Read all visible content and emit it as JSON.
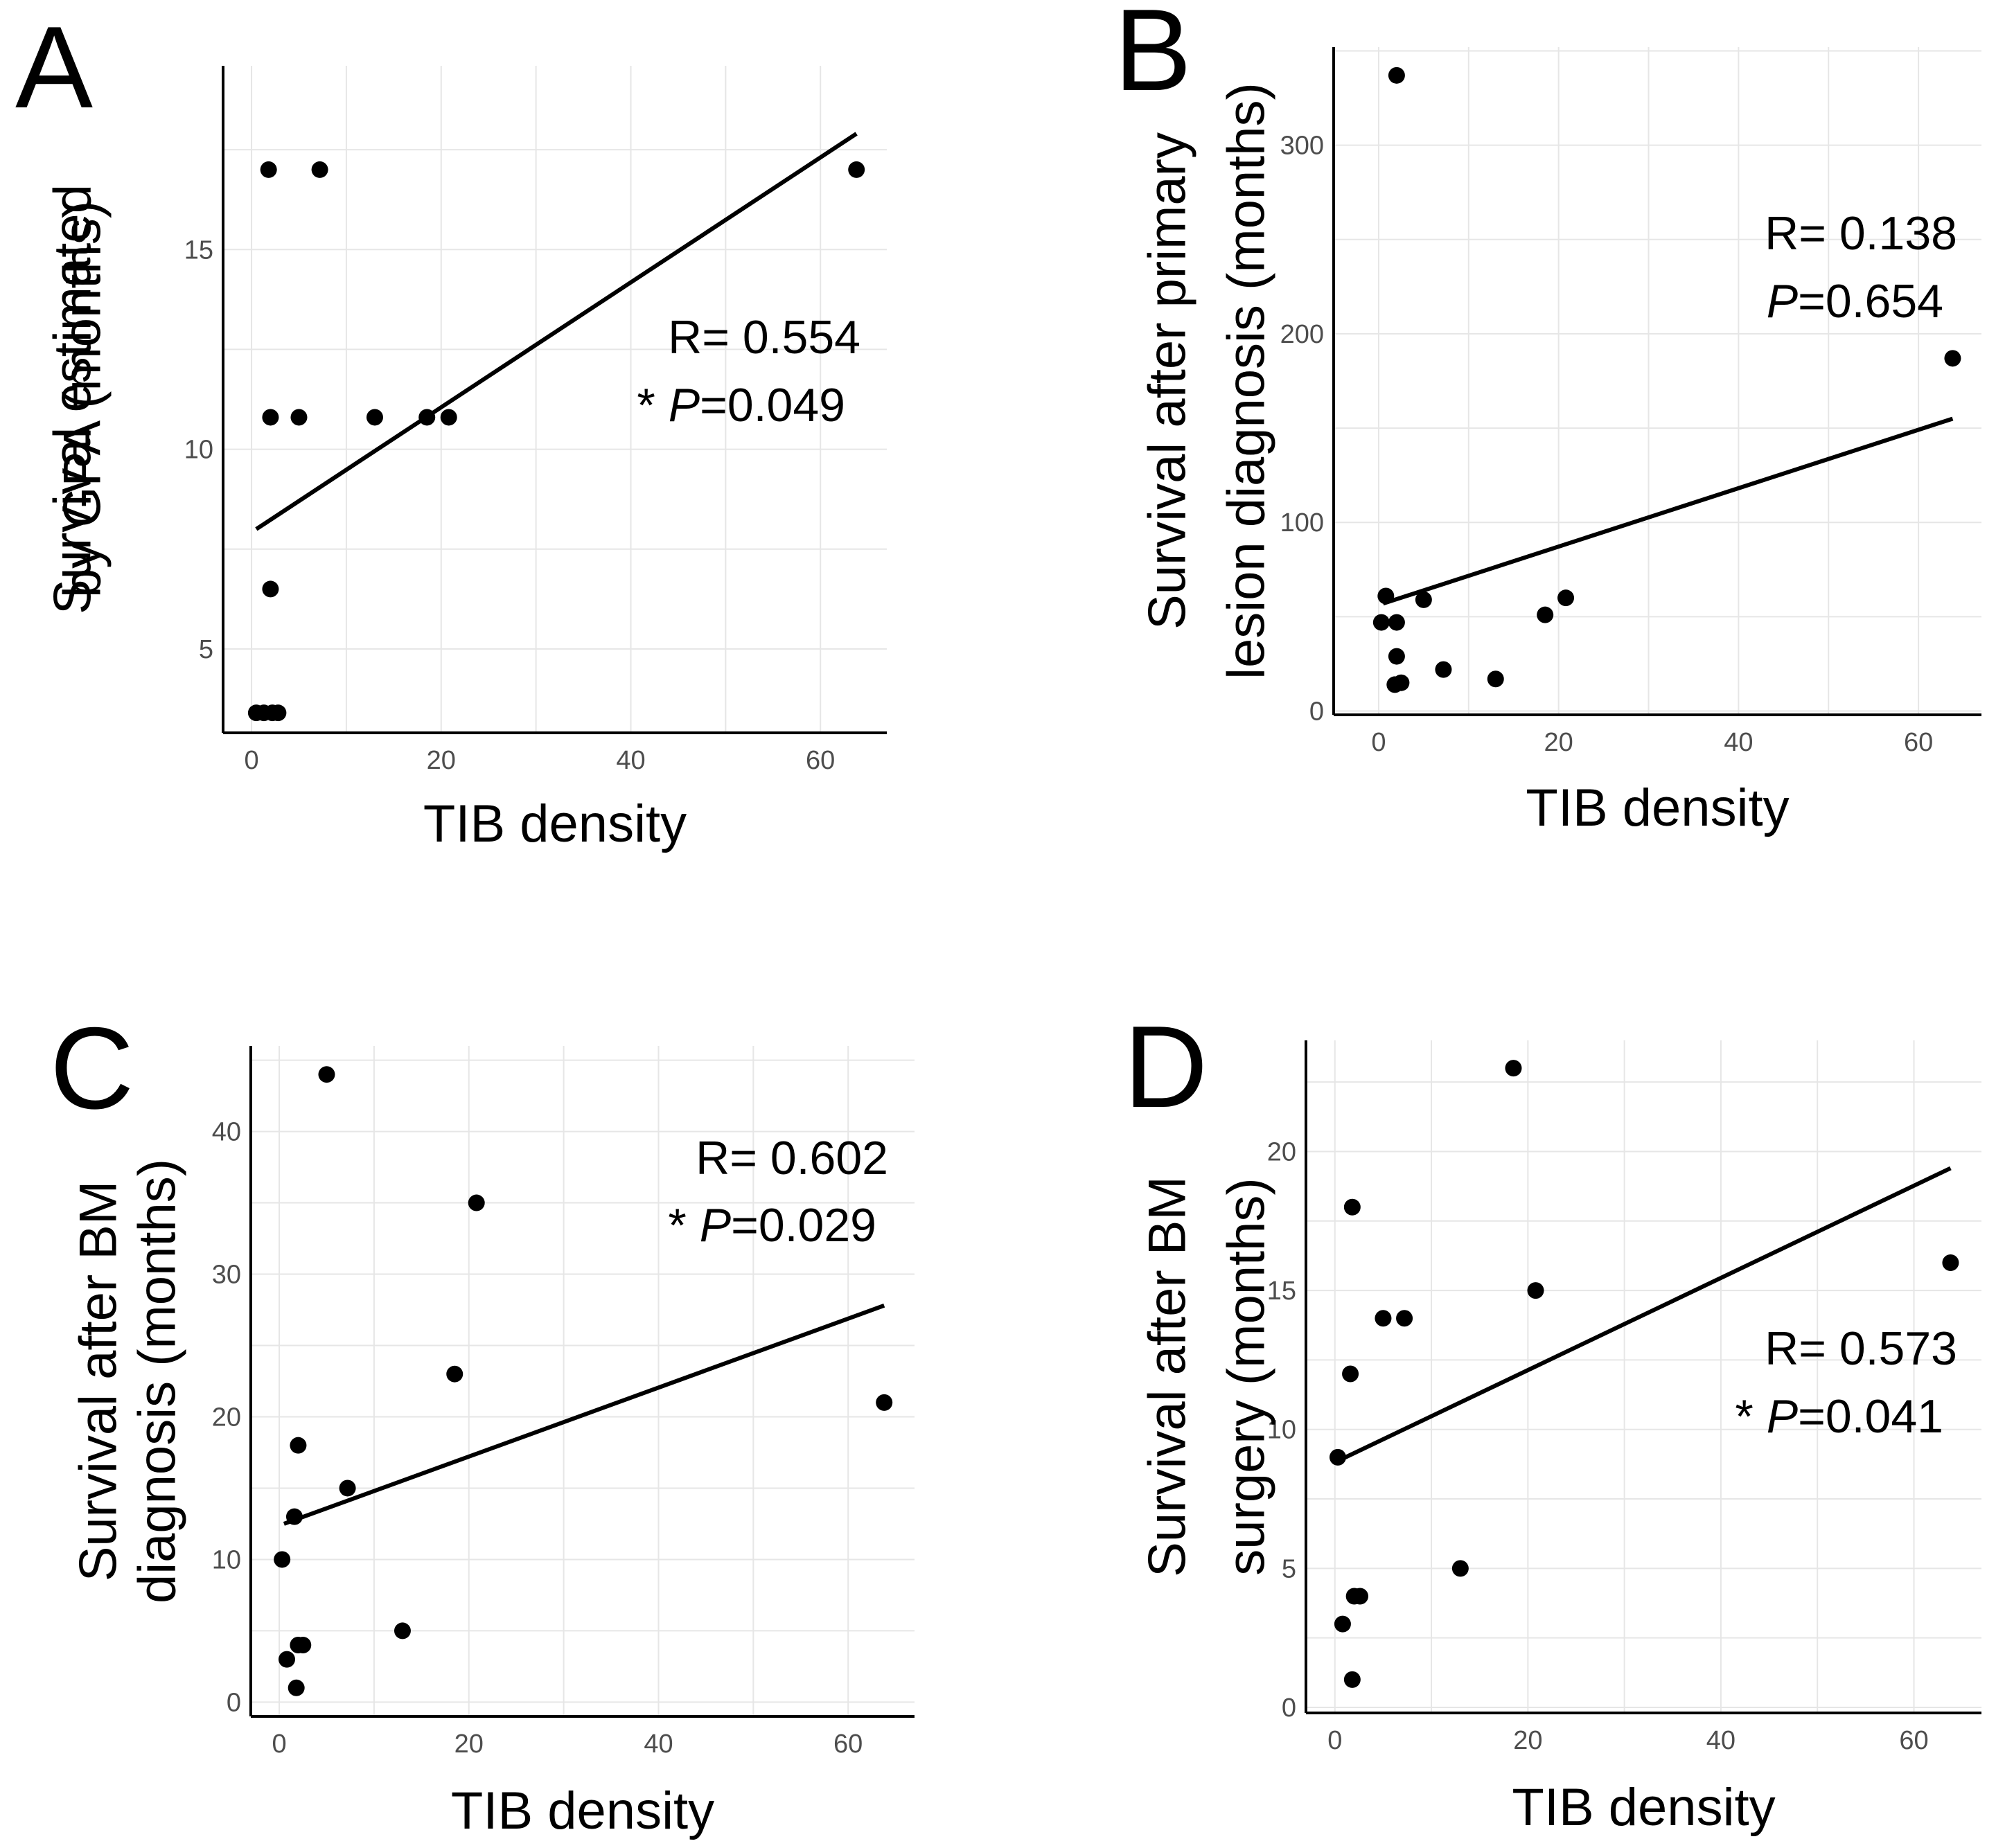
{
  "chart_data": [
    {
      "panel": "A",
      "type": "scatter",
      "xlabel": "TIB density",
      "ylabel_lines": [
        "Survival estimated",
        "by GPA (months)"
      ],
      "xlim": [
        -3,
        67
      ],
      "ylim": [
        2.9,
        19.6
      ],
      "xticks": [
        0,
        20,
        40,
        60
      ],
      "yticks": [
        5,
        10,
        15
      ],
      "points": [
        [
          0.5,
          3.4
        ],
        [
          1.3,
          3.4
        ],
        [
          2.2,
          3.4
        ],
        [
          2.8,
          3.4
        ],
        [
          2.0,
          6.5
        ],
        [
          2.0,
          10.8
        ],
        [
          5.0,
          10.8
        ],
        [
          13.0,
          10.8
        ],
        [
          18.5,
          10.8
        ],
        [
          20.8,
          10.8
        ],
        [
          1.8,
          17.0
        ],
        [
          7.2,
          17.0
        ],
        [
          63.8,
          17.0
        ]
      ],
      "fit": {
        "x": [
          0.5,
          63.8
        ],
        "y": [
          8.0,
          17.9
        ]
      },
      "stat_r": "R= 0.554",
      "stat_star": "*",
      "stat_p_label": "P",
      "stat_p_value": "=0.049"
    },
    {
      "panel": "B",
      "type": "scatter",
      "xlabel": "TIB density",
      "ylabel_lines": [
        "Survival after primary",
        "lesion diagnosis (months)"
      ],
      "xlim": [
        -5,
        67
      ],
      "ylim": [
        -2,
        352
      ],
      "xticks": [
        0,
        20,
        40,
        60
      ],
      "yticks": [
        0,
        100,
        200,
        300
      ],
      "points": [
        [
          0.3,
          47
        ],
        [
          0.8,
          61
        ],
        [
          2.0,
          47
        ],
        [
          2.0,
          29
        ],
        [
          1.8,
          14
        ],
        [
          2.5,
          15
        ],
        [
          5.0,
          59
        ],
        [
          7.2,
          22
        ],
        [
          13.0,
          17
        ],
        [
          18.5,
          51
        ],
        [
          20.8,
          60
        ],
        [
          2.0,
          337
        ],
        [
          63.8,
          187
        ]
      ],
      "fit": {
        "x": [
          0.5,
          63.8
        ],
        "y": [
          57,
          155
        ]
      },
      "stat_r": "R= 0.138",
      "stat_star": "",
      "stat_p_label": "P",
      "stat_p_value": "=0.654"
    },
    {
      "panel": "C",
      "type": "scatter",
      "xlabel": "TIB density",
      "ylabel_lines": [
        "Survival after BM",
        "diagnosis (months)"
      ],
      "xlim": [
        -3,
        67
      ],
      "ylim": [
        -1,
        46
      ],
      "xticks": [
        0,
        20,
        40,
        60
      ],
      "yticks": [
        0,
        10,
        20,
        30,
        40
      ],
      "points": [
        [
          0.3,
          10
        ],
        [
          0.8,
          3
        ],
        [
          1.8,
          1
        ],
        [
          1.6,
          13
        ],
        [
          2.0,
          18
        ],
        [
          2.0,
          4
        ],
        [
          2.5,
          4
        ],
        [
          5.0,
          44
        ],
        [
          7.2,
          15
        ],
        [
          13.0,
          5
        ],
        [
          18.5,
          23
        ],
        [
          20.8,
          35
        ],
        [
          63.8,
          21
        ]
      ],
      "fit": {
        "x": [
          0.5,
          63.8
        ],
        "y": [
          12.5,
          27.8
        ]
      },
      "stat_r": "R= 0.602",
      "stat_star": "*",
      "stat_p_label": "P",
      "stat_p_value": "=0.029"
    },
    {
      "panel": "D",
      "type": "scatter",
      "xlabel": "TIB density",
      "ylabel_lines": [
        "Survival after BM",
        "surgery (months)"
      ],
      "xlim": [
        -3,
        67
      ],
      "ylim": [
        -0.2,
        24
      ],
      "xticks": [
        0,
        20,
        40,
        60
      ],
      "yticks": [
        0,
        5,
        10,
        15,
        20
      ],
      "points": [
        [
          0.3,
          9
        ],
        [
          0.8,
          3
        ],
        [
          1.6,
          12
        ],
        [
          1.8,
          1
        ],
        [
          1.8,
          18
        ],
        [
          2.0,
          4
        ],
        [
          2.6,
          4
        ],
        [
          5.0,
          14
        ],
        [
          7.2,
          14
        ],
        [
          13.0,
          5
        ],
        [
          18.5,
          23
        ],
        [
          20.8,
          15
        ],
        [
          63.8,
          16
        ]
      ],
      "fit": {
        "x": [
          0.5,
          63.8
        ],
        "y": [
          8.9,
          19.4
        ]
      },
      "stat_r": "R= 0.573",
      "stat_star": "*",
      "stat_p_label": "P",
      "stat_p_value": "=0.041"
    }
  ]
}
